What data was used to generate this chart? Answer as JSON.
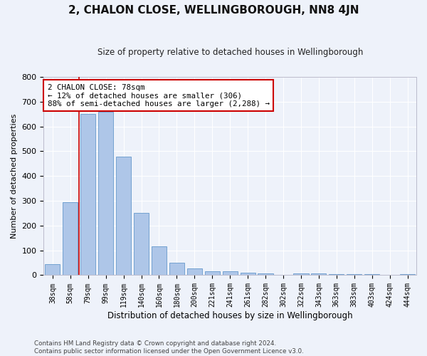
{
  "title": "2, CHALON CLOSE, WELLINGBOROUGH, NN8 4JN",
  "subtitle": "Size of property relative to detached houses in Wellingborough",
  "xlabel": "Distribution of detached houses by size in Wellingborough",
  "ylabel": "Number of detached properties",
  "categories": [
    "38sqm",
    "58sqm",
    "79sqm",
    "99sqm",
    "119sqm",
    "140sqm",
    "160sqm",
    "180sqm",
    "200sqm",
    "221sqm",
    "241sqm",
    "261sqm",
    "282sqm",
    "302sqm",
    "322sqm",
    "343sqm",
    "363sqm",
    "383sqm",
    "403sqm",
    "424sqm",
    "444sqm"
  ],
  "values": [
    45,
    295,
    650,
    660,
    478,
    252,
    115,
    50,
    27,
    15,
    15,
    10,
    8,
    0,
    8,
    8,
    5,
    5,
    5,
    0,
    5
  ],
  "bar_color": "#aec6e8",
  "bar_edge_color": "#6699cc",
  "background_color": "#eef2fa",
  "grid_color": "#ffffff",
  "annotation_text": "2 CHALON CLOSE: 78sqm\n← 12% of detached houses are smaller (306)\n88% of semi-detached houses are larger (2,288) →",
  "annotation_box_color": "#ffffff",
  "annotation_box_edge": "#cc0000",
  "red_line_color": "#cc0000",
  "footer": "Contains HM Land Registry data © Crown copyright and database right 2024.\nContains public sector information licensed under the Open Government Licence v3.0.",
  "ylim": [
    0,
    800
  ],
  "yticks": [
    0,
    100,
    200,
    300,
    400,
    500,
    600,
    700,
    800
  ],
  "fig_width": 6.0,
  "fig_height": 5.0,
  "dpi": 100
}
